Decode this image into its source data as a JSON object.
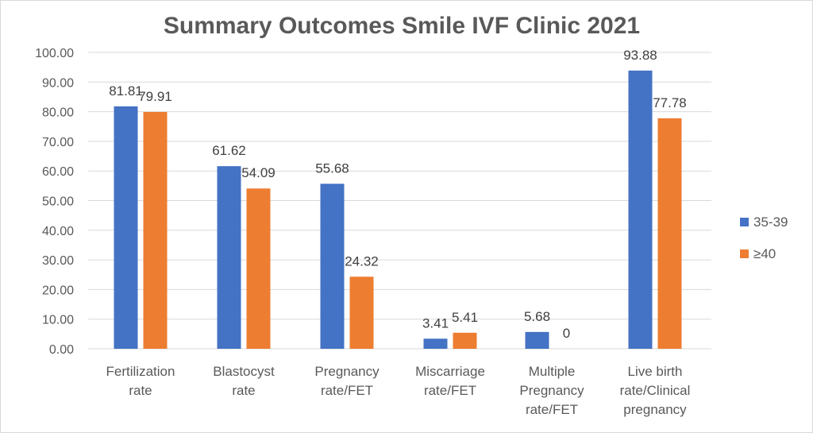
{
  "chart_data": {
    "type": "bar",
    "title": "Summary Outcomes Smile IVF Clinic 2021",
    "categories": [
      [
        "Fertilization",
        "rate"
      ],
      [
        "Blastocyst",
        "rate"
      ],
      [
        "Pregnancy",
        "rate/FET"
      ],
      [
        "Miscarriage",
        "rate/FET"
      ],
      [
        "Multiple",
        "Pregnancy",
        "rate/FET"
      ],
      [
        "Live birth",
        "rate/Clinical",
        "pregnancy"
      ]
    ],
    "series": [
      {
        "name": "35-39",
        "color": "#4472c4",
        "values": [
          81.81,
          61.62,
          55.68,
          3.41,
          5.68,
          93.88
        ],
        "labels": [
          "81.81",
          "61.62",
          "55.68",
          "3.41",
          "5.68",
          "93.88"
        ]
      },
      {
        "name": "≥40",
        "color": "#ed7d31",
        "values": [
          79.91,
          54.09,
          24.32,
          5.41,
          0,
          77.78
        ],
        "labels": [
          "79.91",
          "54.09",
          "24.32",
          "5.41",
          "0",
          "77.78"
        ]
      }
    ],
    "y_ticks": [
      "0.00",
      "10.00",
      "20.00",
      "30.00",
      "40.00",
      "50.00",
      "60.00",
      "70.00",
      "80.00",
      "90.00",
      "100.00"
    ],
    "ylim": [
      0,
      100
    ],
    "grid": true,
    "legend_position": "right"
  }
}
